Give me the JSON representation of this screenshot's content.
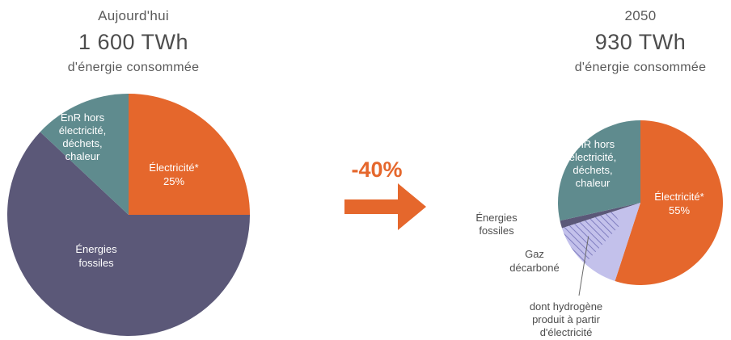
{
  "colors": {
    "electricite": "#e5672c",
    "fossiles": "#5b5878",
    "enr": "#5f8b8e",
    "gaz": "#c3c1eb",
    "hydrogene_hatch": "#8a88c8",
    "arrow": "#e5672c"
  },
  "left": {
    "year": "Aujourd'hui",
    "total": "1 600 TWh",
    "subtitle": "d'énergie consommée"
  },
  "right": {
    "year": "2050",
    "total": "930 TWh",
    "subtitle": "d'énergie consommée"
  },
  "change": {
    "label": "-40%"
  },
  "chart_data": [
    {
      "type": "pie",
      "title": "Aujourd'hui",
      "total": "1 600 TWh",
      "slices": [
        {
          "label": "Électricité*",
          "value": 25,
          "value_label": "25%"
        },
        {
          "label": "Énergies fossiles",
          "value": 62
        },
        {
          "label": "EnR hors électricité, déchets, chaleur",
          "value": 13
        }
      ]
    },
    {
      "type": "pie",
      "title": "2050",
      "total": "930 TWh",
      "slices": [
        {
          "label": "Électricité*",
          "value": 55,
          "value_label": "55%"
        },
        {
          "label": "Gaz décarboné",
          "value": 15
        },
        {
          "label": "Énergies fossiles",
          "value": 1.5
        },
        {
          "label": "EnR hors électricité, déchets, chaleur",
          "value": 28.5
        }
      ],
      "annotations": [
        "dont hydrogène produit à partir d'électricité"
      ]
    }
  ],
  "labels": {
    "left_elec": [
      "Électricité*",
      "25%"
    ],
    "left_fossiles": [
      "Énergies",
      "fossiles"
    ],
    "left_enr": [
      "EnR hors",
      "électricité,",
      "déchets,",
      "chaleur"
    ],
    "right_elec": [
      "Électricité*",
      "55%"
    ],
    "right_enr": [
      "EnR hors",
      "électricité,",
      "déchets,",
      "chaleur"
    ],
    "right_fossiles": [
      "Énergies",
      "fossiles"
    ],
    "right_gaz": [
      "Gaz",
      "décarboné"
    ],
    "right_hydrogene": [
      "dont hydrogène",
      "produit à partir",
      "d'électricité"
    ]
  }
}
